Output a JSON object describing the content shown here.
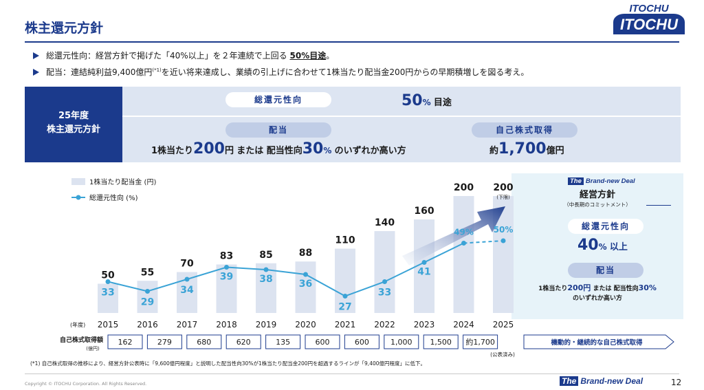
{
  "page": {
    "title": "株主還元方針",
    "page_number": "12",
    "copyright": "Copyright © ITOCHU Corporation. All Rights Reserved.",
    "footer_brand_the": "The",
    "footer_brand_text": "Brand-new Deal"
  },
  "logo": {
    "top": "ITOCHU",
    "main": "ITOCHU"
  },
  "bullets": [
    {
      "pre": "総還元性向：経営方針で掲げた「40%以上」を２年連続で上回る ",
      "strong": "50%目途",
      "post": "。"
    },
    {
      "pre": "配当：連結純利益9,400億円",
      "sup": "(*1)",
      "post": "を近い将来達成し、業績の引上げに合わせて1株当たり配当金200円からの早期積増しを図る考え。"
    }
  ],
  "policy": {
    "label_line1": "25年度",
    "label_line2": "株主還元方針",
    "total_return_label": "総還元性向",
    "total_return_value": "50",
    "total_return_unit": "%",
    "total_return_suffix": "目途",
    "dividend_label": "配当",
    "dividend_pre": "1株当たり",
    "dividend_value": "200",
    "dividend_unit": "円",
    "dividend_mid": "または 配当性向",
    "dividend_ratio": "30",
    "dividend_ratio_unit": "%",
    "dividend_post": "のいずれか高い方",
    "buyback_label": "自己株式取得",
    "buyback_pre": "約",
    "buyback_value": "1,700",
    "buyback_unit": "億円"
  },
  "chart_data": {
    "type": "bar",
    "categories": [
      "2015",
      "2016",
      "2017",
      "2018",
      "2019",
      "2020",
      "2021",
      "2022",
      "2023",
      "2024",
      "2025"
    ],
    "x_axis_prefix": "(年度)",
    "series": [
      {
        "name": "1株当たり配当金 (円)",
        "type": "bar",
        "values": [
          50,
          55,
          70,
          83,
          85,
          88,
          110,
          140,
          160,
          200,
          200
        ]
      },
      {
        "name": "総還元性向 (%)",
        "type": "line",
        "values": [
          33,
          29,
          34,
          39,
          38,
          36,
          27,
          33,
          41,
          49,
          50
        ]
      }
    ],
    "annotations": {
      "2025_dividend_note": "(下限)",
      "2024_ratio_label": "49%",
      "2025_ratio_label": "50%"
    },
    "buyback": {
      "label": "自己株式取得額",
      "unit": "(億円)",
      "values": [
        "162",
        "279",
        "680",
        "620",
        "135",
        "600",
        "600",
        "1,000",
        "1,500",
        "約1,700"
      ],
      "note_2025": "(公表済み)",
      "arrow_label": "機動的・継続的な自己株式取得"
    },
    "legend_position": "top-left",
    "colors": {
      "bar": "#dce3f0",
      "line": "#3aa3d6",
      "accent": "#1b3a8c"
    }
  },
  "right_panel": {
    "brand_the": "The",
    "brand_text": "Brand-new Deal",
    "title": "経営方針",
    "subtitle": "（中長期のコミットメント）",
    "total_return_label": "総還元性向",
    "total_return_value": "40",
    "total_return_unit": "%",
    "total_return_suffix": "以上",
    "dividend_label": "配当",
    "dividend_line1_pre": "1株当たり",
    "dividend_line1_value": "200円",
    "dividend_line1_mid": "または 配当性向",
    "dividend_line1_ratio": "30%",
    "dividend_line2": "のいずれか高い方"
  },
  "footnote": "(*1) 自己株式取得の推移により、経営方針公表時に「9,600億円程度」と説明した配当性向30%が1株当たり配当金200円を超過するラインが「9,400億円程度」に低下。"
}
